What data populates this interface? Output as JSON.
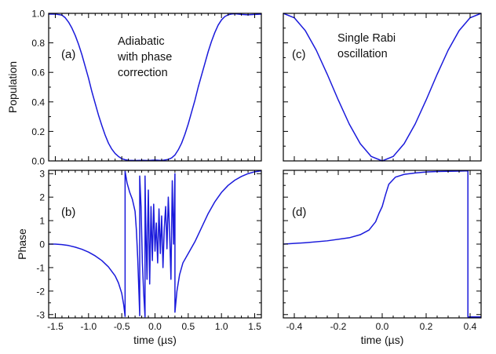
{
  "chart_data": [
    {
      "id": "a",
      "type": "line",
      "panel_label": "(a)",
      "annotation": [
        "Adiabatic",
        "with phase",
        "correction"
      ],
      "ylabel": "Population",
      "xlabel": "",
      "xlim": [
        -1.6,
        1.6
      ],
      "ylim": [
        0.0,
        1.0
      ],
      "yticks": [
        "0.0",
        "0.2",
        "0.4",
        "0.6",
        "0.8",
        "1.0"
      ],
      "series": [
        {
          "x": [
            -1.6,
            -1.5,
            -1.4,
            -1.35,
            -1.3,
            -1.25,
            -1.2,
            -1.15,
            -1.1,
            -1.05,
            -1.0,
            -0.95,
            -0.9,
            -0.85,
            -0.8,
            -0.75,
            -0.7,
            -0.65,
            -0.6,
            -0.55,
            -0.5,
            -0.45,
            -0.4,
            -0.3,
            -0.2,
            -0.1,
            0.0,
            0.1,
            0.2,
            0.25,
            0.3,
            0.35,
            0.4,
            0.45,
            0.5,
            0.55,
            0.6,
            0.65,
            0.7,
            0.75,
            0.8,
            0.85,
            0.9,
            0.95,
            1.0,
            1.05,
            1.1,
            1.15,
            1.2,
            1.3,
            1.4,
            1.5,
            1.6
          ],
          "y": [
            0.995,
            0.995,
            0.988,
            0.97,
            0.94,
            0.9,
            0.85,
            0.79,
            0.72,
            0.64,
            0.56,
            0.47,
            0.39,
            0.31,
            0.24,
            0.175,
            0.12,
            0.08,
            0.05,
            0.03,
            0.015,
            0.008,
            0.004,
            0.003,
            0.004,
            0.003,
            0.006,
            0.003,
            0.01,
            0.02,
            0.04,
            0.075,
            0.12,
            0.18,
            0.25,
            0.33,
            0.41,
            0.5,
            0.58,
            0.66,
            0.74,
            0.81,
            0.87,
            0.92,
            0.955,
            0.978,
            0.99,
            0.995,
            0.997,
            0.993,
            0.99,
            0.993,
            0.995
          ]
        }
      ]
    },
    {
      "id": "b",
      "type": "line",
      "panel_label": "(b)",
      "ylabel": "Phase",
      "xlabel": "time (µs)",
      "xlim": [
        -1.6,
        1.6
      ],
      "ylim": [
        -3.14159,
        3.14159
      ],
      "xticks": [
        "-1.5",
        "-1.0",
        "-0.5",
        "0.0",
        "0.5",
        "1.0",
        "1.5"
      ],
      "yticks": [
        "-3",
        "-2",
        "-1",
        "0",
        "1",
        "2",
        "3"
      ],
      "series": [
        {
          "x": [
            -1.6,
            -1.5,
            -1.4,
            -1.3,
            -1.2,
            -1.1,
            -1.0,
            -0.9,
            -0.8,
            -0.7,
            -0.6,
            -0.55,
            -0.5,
            -0.47,
            -0.45,
            -0.45,
            -0.42,
            -0.38,
            -0.34,
            -0.3,
            -0.28,
            -0.26,
            -0.24,
            -0.23,
            -0.23,
            -0.21,
            -0.19,
            -0.17,
            -0.15,
            -0.15,
            -0.14,
            -0.12,
            -0.11,
            -0.1,
            -0.08,
            -0.06,
            -0.04,
            -0.02,
            0.0,
            0.02,
            0.04,
            0.06,
            0.08,
            0.1,
            0.12,
            0.14,
            0.16,
            0.18,
            0.2,
            0.22,
            0.24,
            0.26,
            0.28,
            0.3,
            0.3,
            0.33,
            0.37,
            0.42,
            0.5,
            0.6,
            0.7,
            0.8,
            0.9,
            1.0,
            1.1,
            1.2,
            1.3,
            1.4,
            1.5,
            1.6
          ],
          "y": [
            0.0,
            0.0,
            -0.02,
            -0.06,
            -0.13,
            -0.22,
            -0.34,
            -0.5,
            -0.7,
            -0.97,
            -1.35,
            -1.65,
            -2.1,
            -2.6,
            -3.08,
            3.1,
            2.6,
            2.2,
            1.9,
            1.4,
            0.6,
            -0.6,
            -2.2,
            -3.05,
            2.9,
            1.6,
            -0.8,
            -2.1,
            -3.1,
            2.9,
            1.0,
            -1.5,
            0.8,
            2.3,
            -1.7,
            1.6,
            -0.7,
            1.7,
            -0.3,
            0.9,
            -0.8,
            1.5,
            -0.4,
            1.2,
            -1.0,
            0.7,
            1.6,
            -0.2,
            2.0,
            0.5,
            -1.5,
            2.7,
            0.0,
            3.0,
            -2.9,
            -2.0,
            -1.3,
            -0.8,
            -0.4,
            0.1,
            0.7,
            1.3,
            1.8,
            2.2,
            2.5,
            2.72,
            2.88,
            3.0,
            3.08,
            3.12
          ]
        }
      ]
    },
    {
      "id": "c",
      "type": "line",
      "panel_label": "(c)",
      "annotation": [
        "Single Rabi",
        "oscillation"
      ],
      "xlim": [
        -0.45,
        0.45
      ],
      "ylim": [
        0.0,
        1.0
      ],
      "series": [
        {
          "x": [
            -0.45,
            -0.4,
            -0.35,
            -0.3,
            -0.25,
            -0.2,
            -0.15,
            -0.1,
            -0.05,
            0.0,
            0.05,
            0.1,
            0.15,
            0.2,
            0.25,
            0.3,
            0.35,
            0.4,
            0.45
          ],
          "y": [
            1.0,
            0.97,
            0.883,
            0.75,
            0.587,
            0.413,
            0.25,
            0.117,
            0.03,
            0.0,
            0.03,
            0.117,
            0.25,
            0.413,
            0.587,
            0.75,
            0.883,
            0.97,
            1.0
          ]
        }
      ]
    },
    {
      "id": "d",
      "type": "line",
      "panel_label": "(d)",
      "xlabel": "time (µs)",
      "xlim": [
        -0.45,
        0.45
      ],
      "ylim": [
        -3.14159,
        3.14159
      ],
      "xticks": [
        "-0.4",
        "-0.2",
        "0.0",
        "0.2",
        "0.4"
      ],
      "series": [
        {
          "x": [
            -0.45,
            -0.35,
            -0.25,
            -0.15,
            -0.1,
            -0.06,
            -0.03,
            -0.015,
            0.0,
            0.015,
            0.03,
            0.06,
            0.1,
            0.15,
            0.2,
            0.25,
            0.3,
            0.35,
            0.39,
            0.39,
            0.45
          ],
          "y": [
            0.0,
            0.06,
            0.14,
            0.27,
            0.4,
            0.6,
            0.95,
            1.3,
            1.6,
            2.1,
            2.55,
            2.85,
            2.97,
            3.03,
            3.07,
            3.09,
            3.1,
            3.11,
            3.12,
            -3.1,
            -3.1
          ]
        }
      ]
    }
  ]
}
